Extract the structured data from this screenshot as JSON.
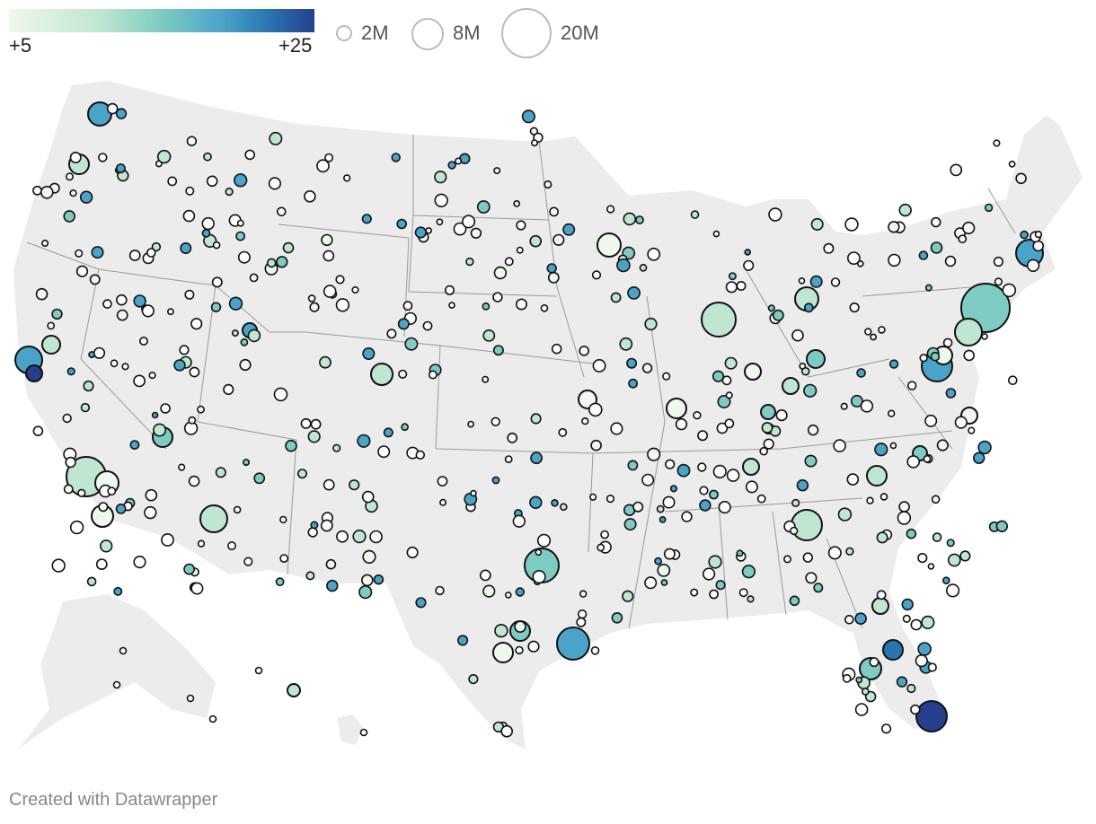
{
  "legend": {
    "color_scale": {
      "low_label": "+5",
      "high_label": "+25",
      "colors": [
        "#eef8ec",
        "#bfe6d1",
        "#7ecbc3",
        "#4aa3c9",
        "#2a75b0",
        "#253f8c"
      ]
    },
    "size_scale": [
      {
        "label": "2M",
        "value": 2000000
      },
      {
        "label": "8M",
        "value": 8000000
      },
      {
        "label": "20M",
        "value": 20000000
      }
    ]
  },
  "map": {
    "land_color": "#ececec",
    "border_color": "#9a9a9a",
    "marker_stroke": "#111111"
  },
  "footer": {
    "credit": "Created with Datawrapper"
  }
}
